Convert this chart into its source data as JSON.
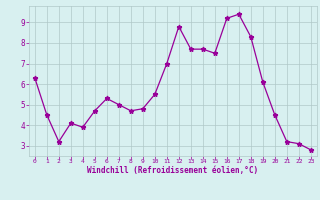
{
  "x": [
    0,
    1,
    2,
    3,
    4,
    5,
    6,
    7,
    8,
    9,
    10,
    11,
    12,
    13,
    14,
    15,
    16,
    17,
    18,
    19,
    20,
    21,
    22,
    23
  ],
  "y": [
    6.3,
    4.5,
    3.2,
    4.1,
    3.9,
    4.7,
    5.3,
    5.0,
    4.7,
    4.8,
    5.5,
    7.0,
    8.8,
    7.7,
    7.7,
    7.5,
    9.2,
    9.4,
    8.3,
    6.1,
    4.5,
    3.2,
    3.1,
    2.8
  ],
  "line_color": "#990099",
  "marker": "*",
  "bg_color": "#d8f0f0",
  "grid_color": "#b0c8c8",
  "xlabel": "Windchill (Refroidissement éolien,°C)",
  "xlabel_color": "#990099",
  "tick_color": "#990099",
  "yticks": [
    3,
    4,
    5,
    6,
    7,
    8,
    9
  ],
  "xticks": [
    0,
    1,
    2,
    3,
    4,
    5,
    6,
    7,
    8,
    9,
    10,
    11,
    12,
    13,
    14,
    15,
    16,
    17,
    18,
    19,
    20,
    21,
    22,
    23
  ],
  "ylim": [
    2.5,
    9.8
  ],
  "xlim": [
    -0.5,
    23.5
  ],
  "figsize": [
    3.2,
    2.0
  ],
  "dpi": 100
}
